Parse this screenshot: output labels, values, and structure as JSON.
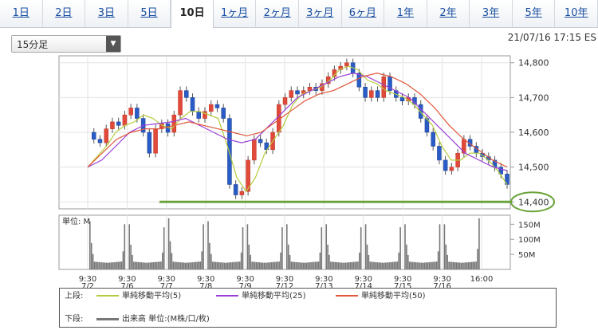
{
  "tabs": [
    {
      "label": "1日"
    },
    {
      "label": "2日"
    },
    {
      "label": "3日"
    },
    {
      "label": "5日"
    },
    {
      "label": "10日",
      "active": true
    },
    {
      "label": "1ヶ月"
    },
    {
      "label": "2ヶ月"
    },
    {
      "label": "3ヶ月"
    },
    {
      "label": "6ヶ月"
    },
    {
      "label": "1年"
    },
    {
      "label": "2年"
    },
    {
      "label": "3年"
    },
    {
      "label": "5年"
    },
    {
      "label": "10年"
    }
  ],
  "interval_select": {
    "value": "15分足",
    "arrow": "▼"
  },
  "timestamp": "21/07/16 17:15 ES",
  "legend": {
    "upper_label": "上段:",
    "lower_label": "下段:",
    "items": [
      {
        "label": "単純移動平均(5)",
        "color": "#b5cc3c"
      },
      {
        "label": "単純移動平均(25)",
        "color": "#9a3fd6"
      },
      {
        "label": "単純移動平均(50)",
        "color": "#e0573a"
      }
    ],
    "volume_label": "出来高 単位:(M株/口/枚)",
    "volume_color": "#777777"
  },
  "chart_data": [
    {
      "type": "candlestick",
      "ylim": [
        14380,
        14820
      ],
      "y_ticks": [
        "14,400",
        "14,500",
        "14,600",
        "14,700",
        "14,800"
      ],
      "y_tick_values": [
        14400,
        14500,
        14600,
        14700,
        14800
      ],
      "x_tick_labels": [
        {
          "time": "9:30",
          "date": "7/2"
        },
        {
          "time": "9:30",
          "date": "7/6"
        },
        {
          "time": "9:30",
          "date": "7/7"
        },
        {
          "time": "9:30",
          "date": "7/8"
        },
        {
          "time": "9:30",
          "date": "7/9"
        },
        {
          "time": "9:30",
          "date": "7/12"
        },
        {
          "time": "9:30",
          "date": "7/13"
        },
        {
          "time": "9:30",
          "date": "7/14"
        },
        {
          "time": "9:30",
          "date": "7/15"
        },
        {
          "time": "9:30",
          "date": "7/16"
        },
        {
          "time": "16:00",
          "date": ""
        }
      ],
      "price_path": [
        14600,
        14580,
        14570,
        14610,
        14630,
        14620,
        14650,
        14670,
        14640,
        14600,
        14540,
        14610,
        14625,
        14600,
        14650,
        14720,
        14700,
        14660,
        14640,
        14660,
        14680,
        14670,
        14640,
        14450,
        14420,
        14430,
        14520,
        14580,
        14570,
        14550,
        14600,
        14680,
        14700,
        14720,
        14710,
        14720,
        14730,
        14720,
        14740,
        14760,
        14780,
        14790,
        14800,
        14770,
        14730,
        14700,
        14720,
        14700,
        14760,
        14720,
        14700,
        14690,
        14700,
        14680,
        14640,
        14600,
        14560,
        14520,
        14490,
        14500,
        14540,
        14580,
        14560,
        14540,
        14530,
        14520,
        14500,
        14480,
        14450
      ],
      "sma5": [
        14500,
        14530,
        14560,
        14600,
        14620,
        14630,
        14650,
        14640,
        14620,
        14610,
        14640,
        14660,
        14660,
        14650,
        14640,
        14560,
        14470,
        14430,
        14470,
        14540,
        14580,
        14620,
        14680,
        14710,
        14720,
        14730,
        14750,
        14780,
        14790,
        14780,
        14750,
        14740,
        14720,
        14710,
        14700,
        14680,
        14650,
        14620,
        14560,
        14520,
        14520,
        14540,
        14540,
        14520,
        14490,
        14450
      ],
      "sma25": [
        14500,
        14520,
        14560,
        14600,
        14620,
        14625,
        14630,
        14640,
        14620,
        14600,
        14580,
        14570,
        14580,
        14620,
        14660,
        14700,
        14720,
        14740,
        14760,
        14770,
        14760,
        14740,
        14720,
        14700,
        14660,
        14620,
        14580,
        14540,
        14520,
        14500,
        14490
      ],
      "sma50": [
        14500,
        14540,
        14580,
        14600,
        14610,
        14610,
        14620,
        14630,
        14620,
        14610,
        14600,
        14590,
        14600,
        14630,
        14660,
        14690,
        14710,
        14720,
        14740,
        14760,
        14770,
        14760,
        14740,
        14710,
        14670,
        14620,
        14580,
        14550,
        14520,
        14500
      ],
      "support_line": {
        "value": 14400,
        "label": "14,400",
        "color": "#6aa43a",
        "highlight": true
      }
    },
    {
      "type": "bar",
      "unit_label": "単位: M",
      "ylim": [
        0,
        180
      ],
      "y_ticks": [
        "50M",
        "100M",
        "150M"
      ],
      "y_tick_values": [
        50,
        100,
        150
      ],
      "session_peaks": [
        160,
        150,
        170,
        160,
        150,
        150,
        150,
        150,
        150,
        150,
        170
      ],
      "session_close_peaks": [
        150,
        140,
        150,
        140,
        140,
        140,
        140,
        140,
        150,
        170
      ],
      "baseline": 22
    }
  ]
}
